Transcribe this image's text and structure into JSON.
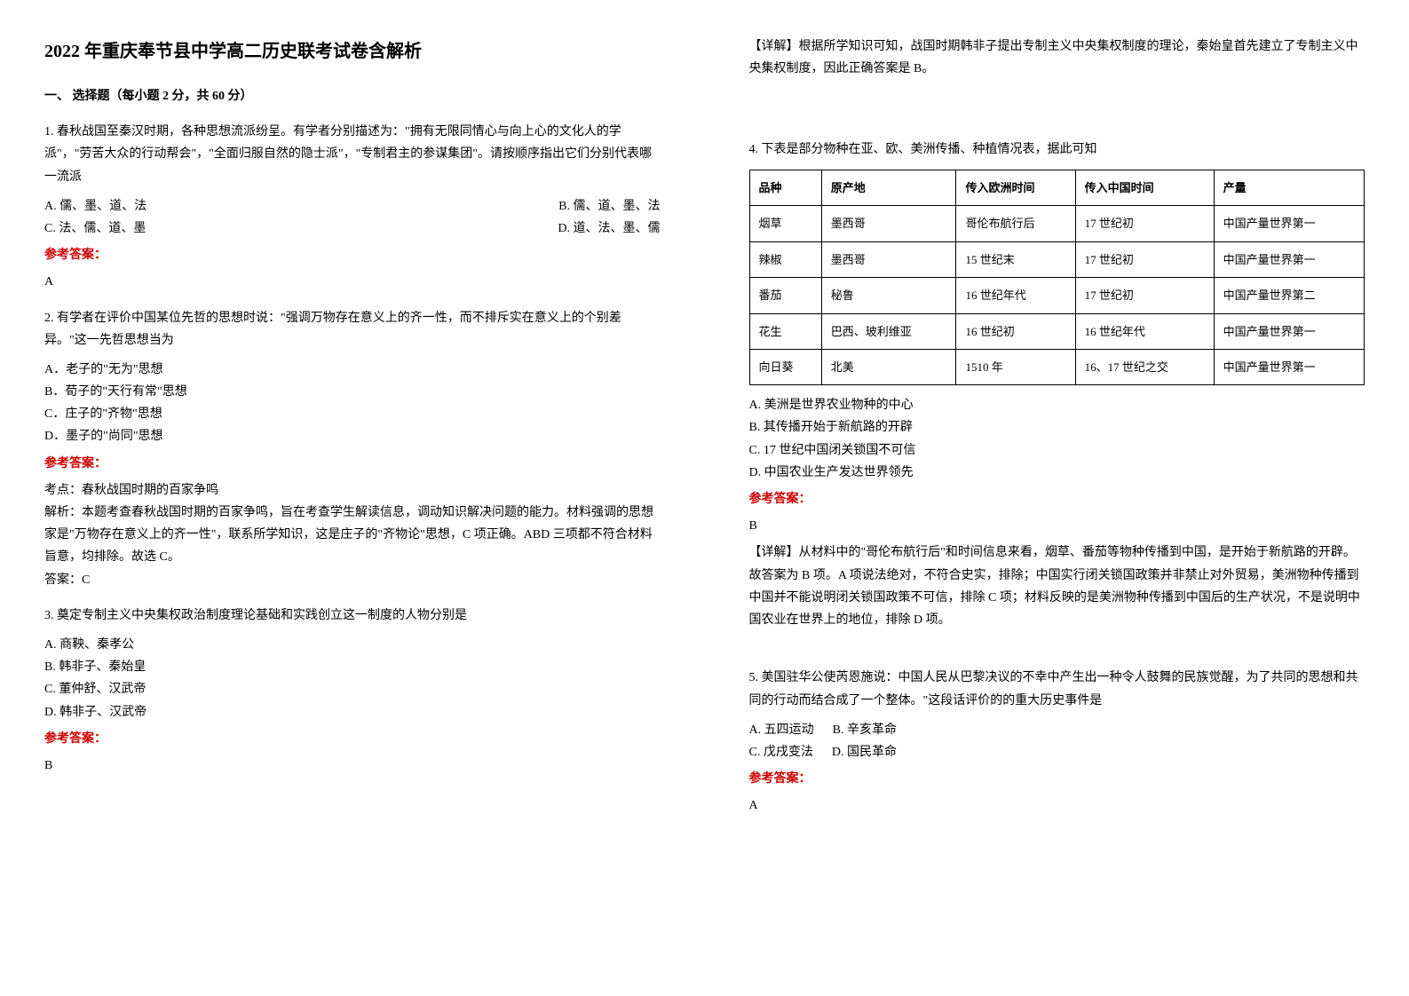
{
  "title": "2022 年重庆奉节县中学高二历史联考试卷含解析",
  "section1_header": "一、 选择题（每小题 2 分，共 60 分）",
  "q1": {
    "text": "1. 春秋战国至秦汉时期，各种思想流派纷呈。有学者分别描述为：\"拥有无限同情心与向上心的文化人的学派\"，\"劳苦大众的行动帮会\"，\"全面归服自然的隐士派\"，\"专制君主的参谋集团\"。请按顺序指出它们分别代表哪一流派",
    "optA": "A. 儒、墨、道、法",
    "optB": "B. 儒、道、墨、法",
    "optC": "C. 法、儒、道、墨",
    "optD": "D. 道、法、墨、儒",
    "answer_label": "参考答案：",
    "answer": "A"
  },
  "q2": {
    "text": "2. 有学者在评价中国某位先哲的思想时说：\"强调万物存在意义上的齐一性，而不排斥实在意义上的个别差异。\"这一先哲思想当为",
    "optA": "A．老子的\"无为\"思想",
    "optB": "B．荀子的\"天行有常\"思想",
    "optC": "C．庄子的\"齐物\"思想",
    "optD": "D．墨子的\"尚同\"思想",
    "answer_label": "参考答案：",
    "kaodian": "考点：春秋战国时期的百家争鸣",
    "jiexi": "解析：本题考查春秋战国时期的百家争鸣，旨在考查学生解读信息，调动知识解决问题的能力。材料强调的思想家是\"万物存在意义上的齐一性\"，联系所学知识，这是庄子的\"齐物论\"思想，C 项正确。ABD 三项都不符合材料旨意，均排除。故选 C。",
    "answer": "答案：C"
  },
  "q3": {
    "text": "3. 奠定专制主义中央集权政治制度理论基础和实践创立这一制度的人物分别是",
    "optA": "A. 商鞅、秦孝公",
    "optB": "B. 韩非子、秦始皇",
    "optC": "C. 董仲舒、汉武帝",
    "optD": "D. 韩非子、汉武帝",
    "answer_label": "参考答案：",
    "answer": "B",
    "detail": "【详解】根据所学知识可知，战国时期韩非子提出专制主义中央集权制度的理论，秦始皇首先建立了专制主义中央集权制度，因此正确答案是 B。"
  },
  "q4": {
    "text": "4. 下表是部分物种在亚、欧、美洲传播、种植情况表，据此可知",
    "table": {
      "headers": [
        "品种",
        "原产地",
        "传入欧洲时间",
        "传入中国时间",
        "产量"
      ],
      "rows": [
        [
          "烟草",
          "墨西哥",
          "哥伦布航行后",
          "17 世纪初",
          "中国产量世界第一"
        ],
        [
          "辣椒",
          "墨西哥",
          "15 世纪末",
          "17 世纪初",
          "中国产量世界第一"
        ],
        [
          "番茄",
          "秘鲁",
          "16 世纪年代",
          "17 世纪初",
          "中国产量世界第二"
        ],
        [
          "花生",
          "巴西、玻利维亚",
          "16 世纪初",
          "16 世纪年代",
          "中国产量世界第一"
        ],
        [
          "向日葵",
          "北美",
          "1510 年",
          "16、17 世纪之交",
          "中国产量世界第一"
        ]
      ]
    },
    "optA": "A. 美洲是世界农业物种的中心",
    "optB": "B. 其传播开始于新航路的开辟",
    "optC": "C. 17 世纪中国闭关锁国不可信",
    "optD": "D. 中国农业生产发达世界领先",
    "answer_label": "参考答案：",
    "answer": "B",
    "detail": "【详解】从材料中的\"哥伦布航行后\"和时间信息来看，烟草、番茄等物种传播到中国，是开始于新航路的开辟。故答案为 B 项。A 项说法绝对，不符合史实，排除；中国实行闭关锁国政策并非禁止对外贸易，美洲物种传播到中国并不能说明闭关锁国政策不可信，排除 C 项；材料反映的是美洲物种传播到中国后的生产状况，不是说明中国农业在世界上的地位，排除 D 项。"
  },
  "q5": {
    "text": "5. 美国驻华公使芮恩施说：中国人民从巴黎决议的不幸中产生出一种令人鼓舞的民族觉醒，为了共同的思想和共同的行动而结合成了一个整体。\"这段话评价的的重大历史事件是",
    "optA": "A. 五四运动",
    "optB": "B. 辛亥革命",
    "optC": "C. 戊戌变法",
    "optD": "D. 国民革命",
    "answer_label": "参考答案：",
    "answer": "A"
  }
}
